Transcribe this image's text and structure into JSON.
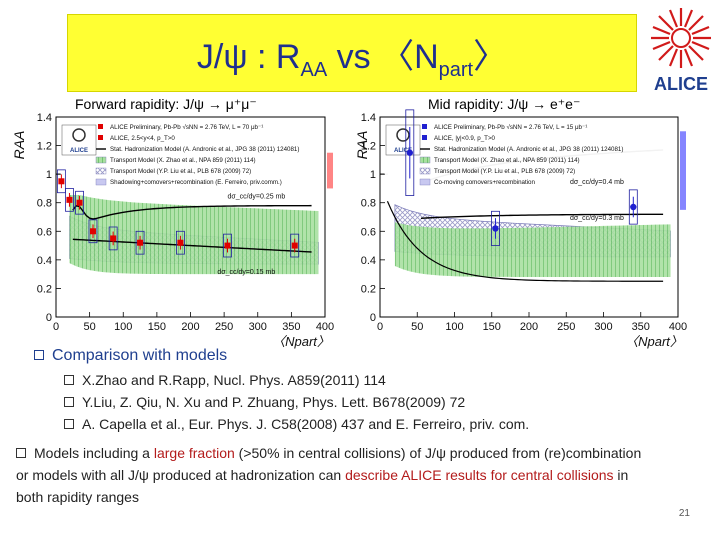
{
  "slide": {
    "title_main": "J/ψ : R",
    "title_sub": "AA",
    "title_rest": " vs 〈N",
    "title_sub2": "part",
    "title_end": "〉",
    "page_number": "21"
  },
  "logo": {
    "text": "ALICE"
  },
  "left_panel_label": "Forward rapidity: J/ψ → μ⁺μ⁻",
  "right_panel_label": "Mid rapidity: J/ψ → e⁺e⁻",
  "bullets": {
    "main": "Comparison with models",
    "refs": [
      "X.Zhao and R.Rapp, Nucl. Phys. A859(2011) 114",
      "Y.Liu, Z. Qiu, N. Xu and P. Zhuang, Phys. Lett. B678(2009) 72",
      "A. Capella et al., Eur. Phys. J. C58(2008) 437 and E. Ferreiro, priv. com."
    ],
    "conclusion_parts": [
      {
        "t": "Models including a ",
        "hl": false
      },
      {
        "t": "large fraction",
        "hl": true
      },
      {
        "t": " (>50% in central collisions) of J/ψ produced from (re)combination or models with all J/ψ produced at  hadronization can ",
        "hl": false
      },
      {
        "t": "describe ALICE results for central collisions",
        "hl": true
      },
      {
        "t": " in both rapidity ranges",
        "hl": false
      }
    ]
  },
  "chart_data": [
    {
      "type": "scatter",
      "title": "Forward rapidity: J/ψ → μ⁺μ⁻",
      "xlabel": "〈N_part〉",
      "ylabel": "R_AA",
      "xlim": [
        0,
        400
      ],
      "ylim": [
        0,
        1.4
      ],
      "xticks": [
        0,
        50,
        100,
        150,
        200,
        250,
        300,
        350,
        400
      ],
      "yticks": [
        0,
        0.2,
        0.4,
        0.6,
        0.8,
        1,
        1.2,
        1.4
      ],
      "legend": [
        "ALICE Preliminary, Pb-Pb √sNN = 2.76 TeV, L = 70 μb⁻¹",
        "ALICE, 2.5<y<4, p_T>0",
        "Stat. Hadronization Model (A. Andronic et al., JPG 38 (2011) 124081)",
        "Transport Model (X. Zhao et al., NPA 859 (2011) 114)",
        "Transport Model (Y.P. Liu et al., PLB 678 (2009) 72)",
        "Shadowing+comovers+recombination (E. Ferreiro, priv.comm.)"
      ],
      "annotations": [
        "dσ_cc/dy=0.25 mb",
        "dσ_cc/dy=0.15 mb"
      ],
      "series": [
        {
          "name": "ALICE 2.5<y<4",
          "x": [
            8,
            20,
            35,
            55,
            85,
            125,
            185,
            255,
            355
          ],
          "y": [
            0.95,
            0.82,
            0.8,
            0.6,
            0.55,
            0.52,
            0.52,
            0.5,
            0.5
          ]
        }
      ]
    },
    {
      "type": "scatter",
      "title": "Mid rapidity: J/ψ → e⁺e⁻",
      "xlabel": "〈N_part〉",
      "ylabel": "R_AA",
      "xlim": [
        0,
        400
      ],
      "ylim": [
        0,
        1.4
      ],
      "xticks": [
        0,
        50,
        100,
        150,
        200,
        250,
        300,
        350,
        400
      ],
      "yticks": [
        0,
        0.2,
        0.4,
        0.6,
        0.8,
        1,
        1.2,
        1.4
      ],
      "legend": [
        "ALICE Preliminary, Pb-Pb √sNN = 2.76 TeV, L = 15 μb⁻¹",
        "ALICE, |y|<0.9, p_T>0",
        "Stat. Hadronization Model (A. Andronic et al., JPG 38 (2011) 124081)",
        "Transport Model (X. Zhao et al., NPA 859 (2011) 114)",
        "Transport Model (Y.P. Liu et al., PLB 678 (2009) 72)",
        "Co-moving comovers+recombination"
      ],
      "annotations": [
        "dσ_cc/dy=0.4 mb",
        "dσ_cc/dy=0.3 mb"
      ],
      "series": [
        {
          "name": "ALICE |y|<0.9",
          "x": [
            40,
            155,
            340
          ],
          "y": [
            1.15,
            0.62,
            0.77
          ]
        }
      ]
    }
  ]
}
